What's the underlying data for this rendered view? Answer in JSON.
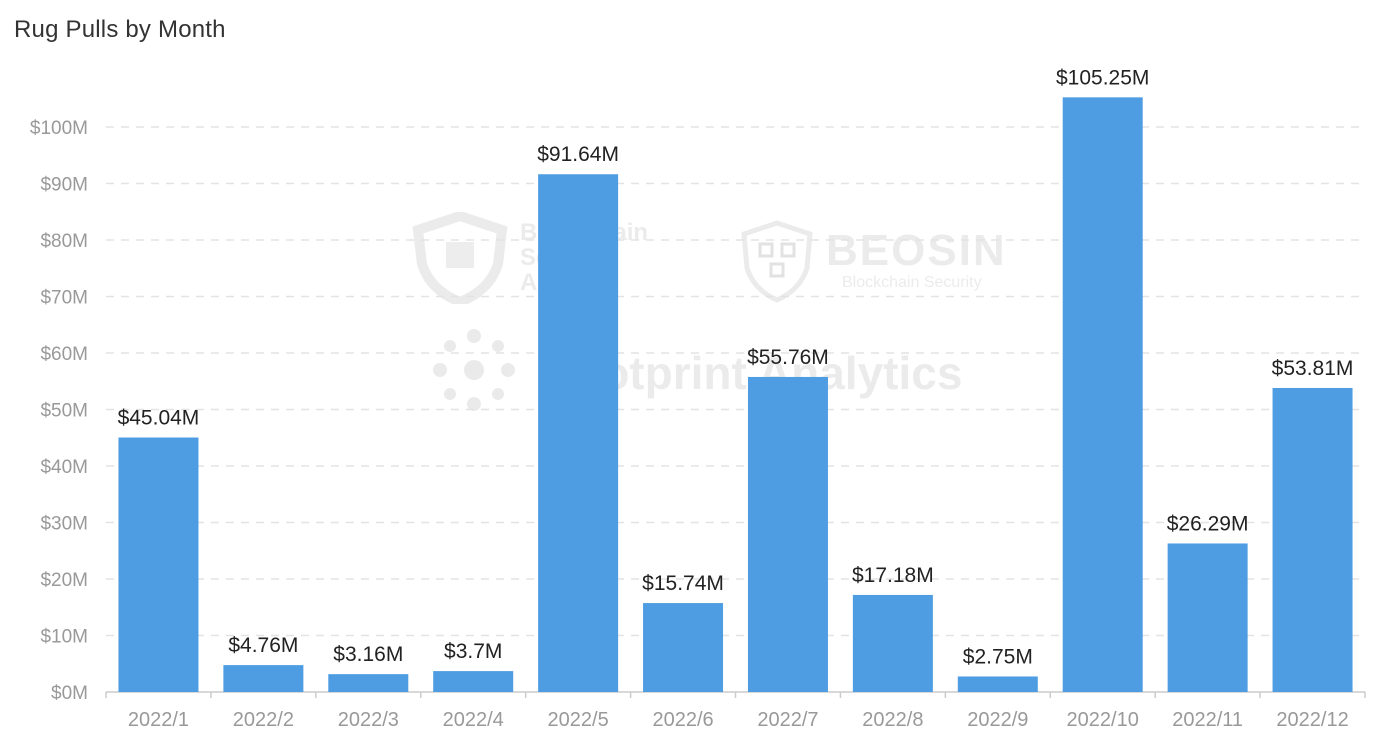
{
  "watermarks": {
    "blockchain_security_alliance": "Blockchain\nSecurity\nAlliance",
    "beosin": "BEOSIN",
    "beosin_sub": "Blockchain Security",
    "footprint": "Footprint Analytics"
  },
  "chart_data": {
    "type": "bar",
    "title": "Rug Pulls by Month",
    "xlabel": "",
    "ylabel": "",
    "categories": [
      "2022/1",
      "2022/2",
      "2022/3",
      "2022/4",
      "2022/5",
      "2022/6",
      "2022/7",
      "2022/8",
      "2022/9",
      "2022/10",
      "2022/11",
      "2022/12"
    ],
    "values": [
      45.04,
      4.76,
      3.16,
      3.7,
      91.64,
      15.74,
      55.76,
      17.18,
      2.75,
      105.25,
      26.29,
      53.81
    ],
    "data_labels": [
      "$45.04M",
      "$4.76M",
      "$3.16M",
      "$3.7M",
      "$91.64M",
      "$15.74M",
      "$55.76M",
      "$17.18M",
      "$2.75M",
      "$105.25M",
      "$26.29M",
      "$53.81M"
    ],
    "y_ticks": [
      0,
      10,
      20,
      30,
      40,
      50,
      60,
      70,
      80,
      90,
      100
    ],
    "y_tick_labels": [
      "$0M",
      "$10M",
      "$20M",
      "$30M",
      "$40M",
      "$50M",
      "$60M",
      "$70M",
      "$80M",
      "$90M",
      "$100M"
    ],
    "ylim": [
      0,
      110
    ],
    "units": "USD millions",
    "grid": true,
    "legend": "none",
    "bar_color": "#4e9de2",
    "grid_color": "#e3e3e3",
    "axis_color": "#cccccc",
    "tick_label_color": "#999999",
    "data_label_color": "#222222"
  }
}
